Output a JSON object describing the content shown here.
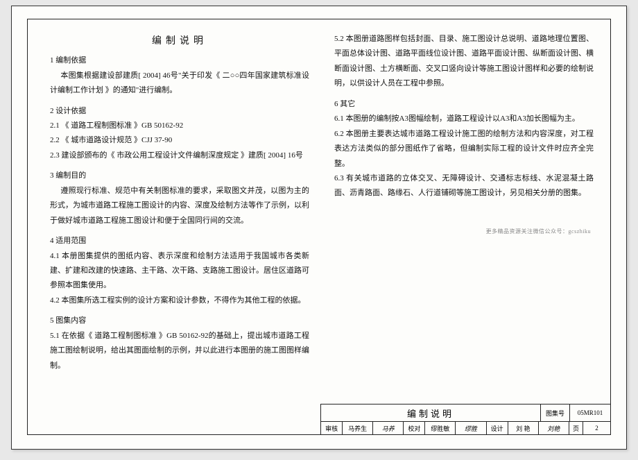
{
  "title": "编制说明",
  "left": {
    "s1": {
      "h": "1 编制依据",
      "p1": "本图集根据建设部建质[ 2004] 46号\"关于印发《 二○○四年国家建筑标准设计编制工作计划 》的通知\"进行编制。"
    },
    "s2": {
      "h": "2 设计依据",
      "i1": "2.1 《 道路工程制图标准 》GB 50162-92",
      "i2": "2.2 《 城市道路设计规范 》CJJ 37-90",
      "i3": "2.3 建设部颁布的《 市政公用工程设计文件编制深度规定 》建质[ 2004] 16号"
    },
    "s3": {
      "h": "3 编制目的",
      "p1": "遵照现行标准、规范中有关制图标准的要求，采取图文并茂，以图为主的形式，为城市道路工程施工图设计的内容、深度及绘制方法等作了示例，以利于做好城市道路工程施工图设计和便于全国同行间的交流。"
    },
    "s4": {
      "h": "4 适用范围",
      "i1": "4.1 本册图集提供的图纸内容、表示深度和绘制方法适用于我国城市各类新建、扩建和改建的快速路、主干路、次干路、支路施工图设计。居住区道路可参照本图集使用。",
      "i2": "4.2 本图集所选工程实例的设计方案和设计参数，不得作为其他工程的依据。"
    },
    "s5": {
      "h": "5 图集内容",
      "i1": "5.1 在依据《 道路工程制图标准 》GB 50162-92的基础上，提出城市道路工程施工图绘制说明，给出其图面绘制的示例，并以此进行本图册的施工图图样编制。"
    }
  },
  "right": {
    "s5": {
      "i2": "5.2 本图册道路图样包括封面、目录、施工图设计总说明、道路地理位置图、平面总体设计图、道路平面线位设计图、道路平面设计图、纵断面设计图、横断面设计图、土方横断面、交叉口竖向设计等施工图设计图样和必要的绘制说明，以供设计人员在工程中参照。"
    },
    "s6": {
      "h": "6 其它",
      "i1": "6.1 本图册的编制按A3图幅绘制，道路工程设计以A3和A3加长图幅为主。",
      "i2": "6.2 本图册主要表达城市道路工程设计施工图的绘制方法和内容深度，对工程表达方法类似的部分图纸作了省略，但编制实际工程的设计文件时应齐全完整。",
      "i3": "6.3 有关城市道路的立体交叉、无障碍设计、交通标志标线、水泥混凝土路面、沥青路面、路缘石、人行道铺砌等施工图设计，另见相关分册的图集。"
    }
  },
  "watermark": "更多精品资源关注微信公众号：gcszhiku",
  "titleblock": {
    "main": "编制说明",
    "set_k": "图集号",
    "set_v": "05MR101",
    "page_k": "页",
    "page_v": "2",
    "b1k": "审核",
    "b1v": "马养生",
    "b1s": "马养",
    "b2k": "校对",
    "b2v": "缪胜敏",
    "b2s": "缪胜",
    "b3k": "设计",
    "b3v": "刘 艳",
    "b3s": "刘艳"
  }
}
